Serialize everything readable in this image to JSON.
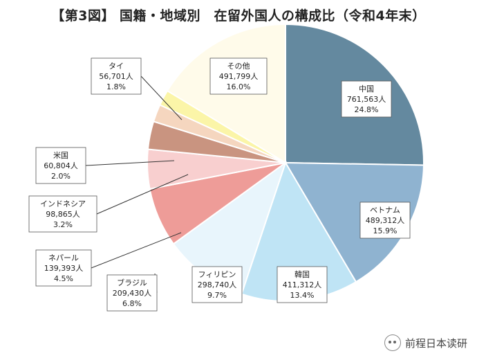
{
  "chart_data": {
    "type": "pie",
    "title": "【第3図】 国籍・地域別　在留外国人の構成比（令和4年末）",
    "slices": [
      {
        "name": "中国",
        "count": "761,563人",
        "percent": "24.8%",
        "value": 24.8,
        "color": "#64899f"
      },
      {
        "name": "ベトナム",
        "count": "489,312人",
        "percent": "15.9%",
        "value": 15.9,
        "color": "#8fb3d0"
      },
      {
        "name": "韓国",
        "count": "411,312人",
        "percent": "13.4%",
        "value": 13.4,
        "color": "#bfe4f5"
      },
      {
        "name": "フィリピン",
        "count": "298,740人",
        "percent": "9.7%",
        "value": 9.7,
        "color": "#e8f5fc"
      },
      {
        "name": "ブラジル",
        "count": "209,430人",
        "percent": "6.8%",
        "value": 6.8,
        "color": "#ee9c98"
      },
      {
        "name": "ネパール",
        "count": "139,393人",
        "percent": "4.5%",
        "value": 4.5,
        "color": "#f8cfcf"
      },
      {
        "name": "インドネシア",
        "count": "98,865人",
        "percent": "3.2%",
        "value": 3.2,
        "color": "#c99480"
      },
      {
        "name": "米国",
        "count": "60,804人",
        "percent": "2.0%",
        "value": 2.0,
        "color": "#f5d6bf"
      },
      {
        "name": "タイ",
        "count": "56,701人",
        "percent": "1.8%",
        "value": 1.8,
        "color": "#fbf5a8"
      },
      {
        "name": "その他",
        "count": "491,799人",
        "percent": "16.0%",
        "value": 16.0,
        "color": "#fffbea"
      }
    ]
  },
  "watermark": {
    "text": "前程日本读研",
    "icon": "wechat-icon"
  }
}
